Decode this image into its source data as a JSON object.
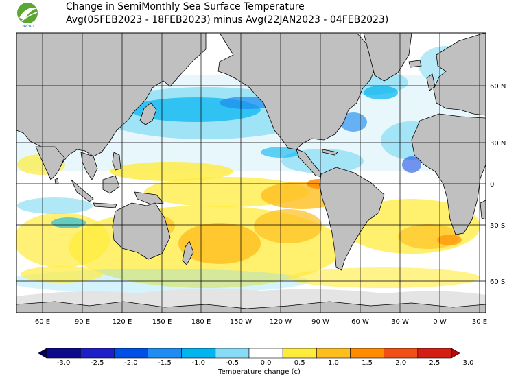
{
  "header": {
    "logo_text": "สสนก",
    "title_line1": "Change in SemiMonthly Sea Surface Temperature",
    "title_line2": "Avg(05FEB2023 - 18FEB2023) minus Avg(22JAN2023 - 04FEB2023)"
  },
  "map": {
    "lon_labels": [
      "60 E",
      "90 E",
      "120 E",
      "150 E",
      "180 E",
      "150 W",
      "120 W",
      "90 W",
      "60 W",
      "30 W",
      "0 W",
      "30 E"
    ],
    "lat_labels": [
      "60 N",
      "30 N",
      "0",
      "30 S",
      "60 S"
    ],
    "land_color": "#c0c0c0",
    "ice_color": "#e4e4e4"
  },
  "colorbar": {
    "title": "Temperature change  (c)",
    "tick_labels": [
      "-3.0",
      "-2.5",
      "-2.0",
      "-1.5",
      "-1.0",
      "-0.5",
      "0.0",
      "0.5",
      "1.0",
      "1.5",
      "2.0",
      "2.5",
      "3.0"
    ],
    "colors": [
      "#0a0a8a",
      "#1e1ec8",
      "#0050e6",
      "#1e8cf0",
      "#00b4f0",
      "#87dcf5",
      "#ffffff",
      "#ffeb3c",
      "#ffbe1e",
      "#ff8c00",
      "#f05014",
      "#d21e14"
    ],
    "low_arrow_color": "#00005a",
    "high_arrow_color": "#b40a0a"
  }
}
